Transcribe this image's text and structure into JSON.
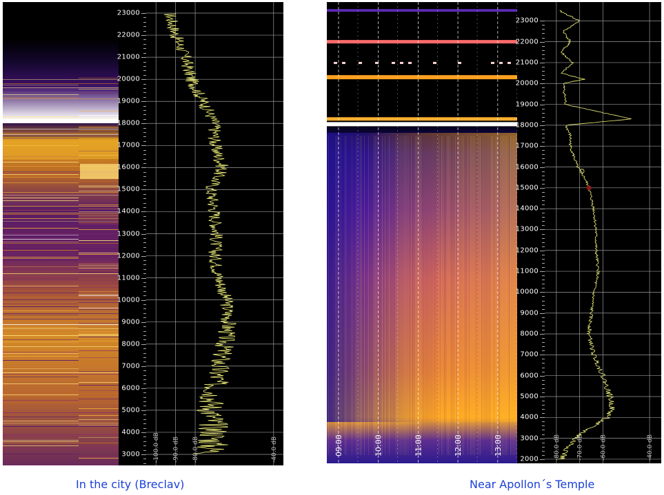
{
  "chart_data": [
    {
      "type": "heatmap",
      "title": "",
      "caption": "In the city (Breclav)",
      "freq_ticks": [
        23000,
        22000,
        21000,
        20000,
        19000,
        18000,
        17000,
        16000,
        15000,
        14000,
        13000,
        12000,
        11000,
        10000,
        9000,
        8000,
        7000,
        6000,
        5000,
        4000,
        3000
      ],
      "freq_tick_labels": [
        "23000",
        "22000",
        "21000",
        "20000",
        "19000",
        "18000",
        "17000",
        "16000",
        "15000",
        "14000",
        "13000",
        "12000",
        "11000",
        "10000",
        "9000",
        "8000",
        "7000",
        "6000",
        "5000",
        "4000",
        "3000"
      ],
      "ylim": [
        2500,
        23500
      ],
      "level_axis": {
        "ticks": [
          -100,
          -90,
          -80,
          -40
        ],
        "labels": [
          "-100.0 dB",
          "-90.0 dB",
          "-80.0 dB",
          "-40.0 dB"
        ],
        "xlim": [
          -105,
          -35
        ]
      },
      "level_profile": {
        "freq": [
          23000,
          22000,
          21000,
          20000,
          19000,
          18000,
          17000,
          16000,
          15000,
          14000,
          13000,
          12000,
          11000,
          10000,
          9000,
          8000,
          7000,
          6000,
          5000,
          4000,
          3000
        ],
        "level": [
          -93,
          -90,
          -85,
          -82,
          -76,
          -70,
          -70,
          -66,
          -72,
          -70,
          -69,
          -70,
          -68,
          -64,
          -63,
          -65,
          -68,
          -70,
          -72,
          -70,
          -72
        ]
      },
      "grid": true
    },
    {
      "type": "heatmap",
      "title": "",
      "caption": "Near Apollon´s Temple",
      "time_labels": [
        "09:00",
        "10:00",
        "11:00",
        "12:00",
        "13:00"
      ],
      "freq_ticks": [
        23000,
        22000,
        21000,
        20000,
        19000,
        18000,
        17000,
        16000,
        15000,
        14000,
        13000,
        12000,
        11000,
        10000,
        9000,
        8000,
        7000,
        6000,
        5000,
        4000,
        3000,
        2000
      ],
      "freq_tick_labels": [
        "23000",
        "22000",
        "21000",
        "20000",
        "19000",
        "18000",
        "17000",
        "16000",
        "15000",
        "14000",
        "13000",
        "12000",
        "11000",
        "10000",
        "9000",
        "8000",
        "7000",
        "6000",
        "5000",
        "4000",
        "3000",
        "2000"
      ],
      "ylim": [
        1800,
        23900
      ],
      "level_axis": {
        "ticks": [
          -80,
          -70,
          -60,
          -40
        ],
        "labels": [
          "-80.0 dB",
          "-70.0 dB",
          "-60.0 dB",
          "-40.0 dB"
        ],
        "xlim": [
          -85,
          -35
        ]
      },
      "level_profile": {
        "freq": [
          23500,
          23000,
          22500,
          22000,
          21500,
          21000,
          20500,
          20200,
          20000,
          19000,
          18300,
          18000,
          17500,
          17000,
          16000,
          15500,
          15000,
          14000,
          13000,
          12000,
          11000,
          10000,
          9000,
          8000,
          7000,
          6000,
          5000,
          4500,
          4000,
          3500,
          3000,
          2500,
          2000
        ],
        "level": [
          -79,
          -70,
          -77,
          -74,
          -78,
          -73,
          -78,
          -68,
          -77,
          -76,
          -48,
          -76,
          -74,
          -74,
          -71,
          -68,
          -66,
          -64,
          -63,
          -63,
          -62,
          -64,
          -65,
          -66,
          -64,
          -60,
          -57,
          -56,
          -58,
          -66,
          -72,
          -75,
          -78
        ]
      },
      "grid": true
    }
  ]
}
